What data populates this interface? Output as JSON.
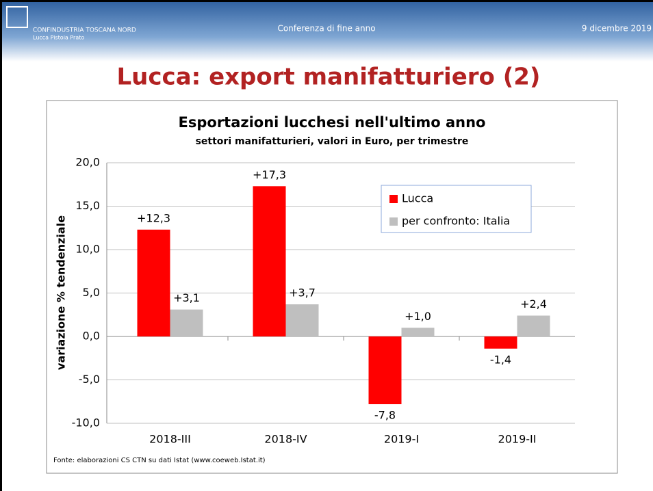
{
  "header": {
    "brand": "CONFINDUSTRIA TOSCANA NORD",
    "brand_sub": "Lucca Pistoia Prato",
    "event": "Conferenza di fine anno",
    "date": "9 dicembre 2019"
  },
  "slide_title": "Lucca: export manifatturiero (2)",
  "chart_data": {
    "type": "bar",
    "title": "Esportazioni lucchesi nell'ultimo anno",
    "subtitle": "settori manifatturieri, valori in Euro, per trimestre",
    "y_label": "variazione % tendenziale",
    "source": "Fonte: elaborazioni CS CTN su dati Istat (www.coeweb.Istat.it)",
    "categories": [
      "2018-III",
      "2018-IV",
      "2019-I",
      "2019-II"
    ],
    "series": [
      {
        "name": "Lucca",
        "color": "#ff0000",
        "values": [
          12.3,
          17.3,
          -7.8,
          -1.4
        ],
        "value_labels": [
          "+12,3",
          "+17,3",
          "-7,8",
          "-1,4"
        ]
      },
      {
        "name": "per confronto: Italia",
        "color": "#bfbfbf",
        "values": [
          3.1,
          3.7,
          1.0,
          2.4
        ],
        "value_labels": [
          "+3,1",
          "+3,7",
          "+1,0",
          "+2,4"
        ]
      }
    ],
    "ylim": [
      -10,
      20
    ],
    "yticks": [
      {
        "value": -10,
        "label": "-10,0"
      },
      {
        "value": -5,
        "label": "-5,0"
      },
      {
        "value": 0,
        "label": "0,0"
      },
      {
        "value": 5,
        "label": "5,0"
      },
      {
        "value": 10,
        "label": "10,0"
      },
      {
        "value": 15,
        "label": "15,0"
      },
      {
        "value": 20,
        "label": "20,0"
      }
    ],
    "grid": true,
    "legend": "upper right"
  }
}
